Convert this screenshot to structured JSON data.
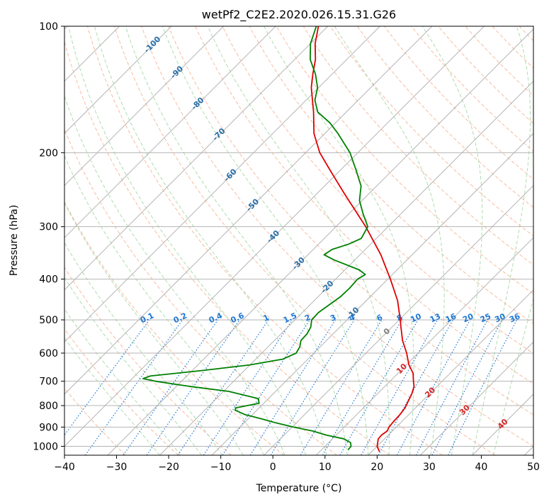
{
  "chart_data": {
    "type": "line",
    "subtype": "skew-t log-p diagram",
    "title": "wetPf2_C2E2.2020.026.15.31.G26",
    "xlabel": "Temperature (°C)",
    "ylabel": "Pressure (hPa)",
    "xlim": [
      -40,
      50
    ],
    "ylim": [
      1050,
      100
    ],
    "y_scale": "log",
    "grid": true,
    "x_ticks": [
      -40,
      -30,
      -20,
      -10,
      0,
      10,
      20,
      30,
      40,
      50
    ],
    "x_tick_labels": [
      "−40",
      "−30",
      "−20",
      "−10",
      "0",
      "10",
      "20",
      "30",
      "40",
      "50"
    ],
    "y_ticks": [
      100,
      200,
      300,
      400,
      500,
      600,
      700,
      800,
      900,
      1000
    ],
    "y_tick_labels": [
      "100",
      "200",
      "300",
      "400",
      "500",
      "600",
      "700",
      "800",
      "900",
      "1000"
    ],
    "series": [
      {
        "color": "#e00000",
        "points": [
          {
            "p": 1030,
            "t": 21.5
          },
          {
            "p": 1000,
            "t": 20.0
          },
          {
            "p": 960,
            "t": 18.8
          },
          {
            "p": 940,
            "t": 18.7
          },
          {
            "p": 920,
            "t": 19.0
          },
          {
            "p": 900,
            "t": 18.6
          },
          {
            "p": 870,
            "t": 18.4
          },
          {
            "p": 840,
            "t": 18.3
          },
          {
            "p": 810,
            "t": 18.0
          },
          {
            "p": 780,
            "t": 17.3
          },
          {
            "p": 750,
            "t": 16.6
          },
          {
            "p": 720,
            "t": 15.6
          },
          {
            "p": 700,
            "t": 14.5
          },
          {
            "p": 670,
            "t": 12.9
          },
          {
            "p": 640,
            "t": 10.5
          },
          {
            "p": 600,
            "t": 7.8
          },
          {
            "p": 560,
            "t": 4.6
          },
          {
            "p": 520,
            "t": 1.7
          },
          {
            "p": 500,
            "t": 0.2
          },
          {
            "p": 450,
            "t": -4.0
          },
          {
            "p": 400,
            "t": -9.5
          },
          {
            "p": 350,
            "t": -16.0
          },
          {
            "p": 300,
            "t": -24.3
          },
          {
            "p": 250,
            "t": -34.8
          },
          {
            "p": 220,
            "t": -42.0
          },
          {
            "p": 200,
            "t": -47.3
          },
          {
            "p": 180,
            "t": -52.1
          },
          {
            "p": 160,
            "t": -56.3
          },
          {
            "p": 140,
            "t": -61.4
          },
          {
            "p": 130,
            "t": -63.7
          },
          {
            "p": 120,
            "t": -66.0
          },
          {
            "p": 110,
            "t": -69.1
          },
          {
            "p": 100,
            "t": -71.8
          }
        ]
      },
      {
        "color": "#008000",
        "points": [
          {
            "p": 1020,
            "t": 15.1
          },
          {
            "p": 1000,
            "t": 15.0
          },
          {
            "p": 980,
            "t": 14.2
          },
          {
            "p": 960,
            "t": 12.2
          },
          {
            "p": 940,
            "t": 8.0
          },
          {
            "p": 920,
            "t": 4.8
          },
          {
            "p": 900,
            "t": 0.3
          },
          {
            "p": 880,
            "t": -3.8
          },
          {
            "p": 860,
            "t": -7.5
          },
          {
            "p": 840,
            "t": -11.5
          },
          {
            "p": 820,
            "t": -14.2
          },
          {
            "p": 810,
            "t": -14.5
          },
          {
            "p": 790,
            "t": -10.9
          },
          {
            "p": 770,
            "t": -11.9
          },
          {
            "p": 740,
            "t": -19.0
          },
          {
            "p": 720,
            "t": -27.5
          },
          {
            "p": 700,
            "t": -35.0
          },
          {
            "p": 690,
            "t": -37.9
          },
          {
            "p": 680,
            "t": -37.0
          },
          {
            "p": 660,
            "t": -28.0
          },
          {
            "p": 640,
            "t": -20.0
          },
          {
            "p": 620,
            "t": -14.8
          },
          {
            "p": 600,
            "t": -13.4
          },
          {
            "p": 580,
            "t": -13.9
          },
          {
            "p": 560,
            "t": -14.9
          },
          {
            "p": 540,
            "t": -15.0
          },
          {
            "p": 520,
            "t": -15.6
          },
          {
            "p": 500,
            "t": -16.8
          },
          {
            "p": 480,
            "t": -16.9
          },
          {
            "p": 460,
            "t": -16.3
          },
          {
            "p": 440,
            "t": -15.7
          },
          {
            "p": 420,
            "t": -15.6
          },
          {
            "p": 400,
            "t": -15.8
          },
          {
            "p": 390,
            "t": -15.2
          },
          {
            "p": 380,
            "t": -17.3
          },
          {
            "p": 360,
            "t": -24.0
          },
          {
            "p": 350,
            "t": -26.9
          },
          {
            "p": 340,
            "t": -26.4
          },
          {
            "p": 330,
            "t": -24.2
          },
          {
            "p": 320,
            "t": -22.9
          },
          {
            "p": 300,
            "t": -23.9
          },
          {
            "p": 280,
            "t": -27.2
          },
          {
            "p": 260,
            "t": -30.5
          },
          {
            "p": 240,
            "t": -33.0
          },
          {
            "p": 220,
            "t": -37.0
          },
          {
            "p": 200,
            "t": -41.5
          },
          {
            "p": 180,
            "t": -47.5
          },
          {
            "p": 170,
            "t": -51.0
          },
          {
            "p": 160,
            "t": -55.5
          },
          {
            "p": 150,
            "t": -58.3
          },
          {
            "p": 140,
            "t": -60.2
          },
          {
            "p": 130,
            "t": -63.2
          },
          {
            "p": 120,
            "t": -67.0
          },
          {
            "p": 110,
            "t": -70.0
          },
          {
            "p": 100,
            "t": -72.2
          }
        ]
      }
    ],
    "isotherm_labels": [
      "-100",
      "-90",
      "-80",
      "-70",
      "-60",
      "-50",
      "-40",
      "-30",
      "-20",
      "-10",
      "0",
      "10",
      "20",
      "30",
      "40"
    ],
    "isotherm_label_values": [
      -100,
      -90,
      -80,
      -70,
      -60,
      -50,
      -40,
      -30,
      -20,
      -10,
      0,
      10,
      20,
      30,
      40
    ],
    "mixing_ratio_labels": [
      "0.1",
      "0.2",
      "0.4",
      "0.6",
      "1",
      "1.5",
      "2",
      "3",
      "4",
      "6",
      "8",
      "10",
      "13",
      "16",
      "20",
      "25",
      "30",
      "36"
    ],
    "mixing_ratio_values": [
      0.1,
      0.2,
      0.4,
      0.6,
      1,
      1.5,
      2,
      3,
      4,
      6,
      8,
      10,
      13,
      16,
      20,
      25,
      30,
      36
    ],
    "colors": {
      "temperature": "#e00000",
      "dewpoint": "#008000",
      "isotherm_grid": "#b4b4b4",
      "dry_adiabat": "#f4a582",
      "moist_adiabat": "#a6d8a6",
      "mixing_ratio": "#1f77d4",
      "isotherm_label_cold": "#2a6fa8",
      "isotherm_label_warm": "#d62728",
      "isotherm_label_zero": "#808080"
    }
  }
}
